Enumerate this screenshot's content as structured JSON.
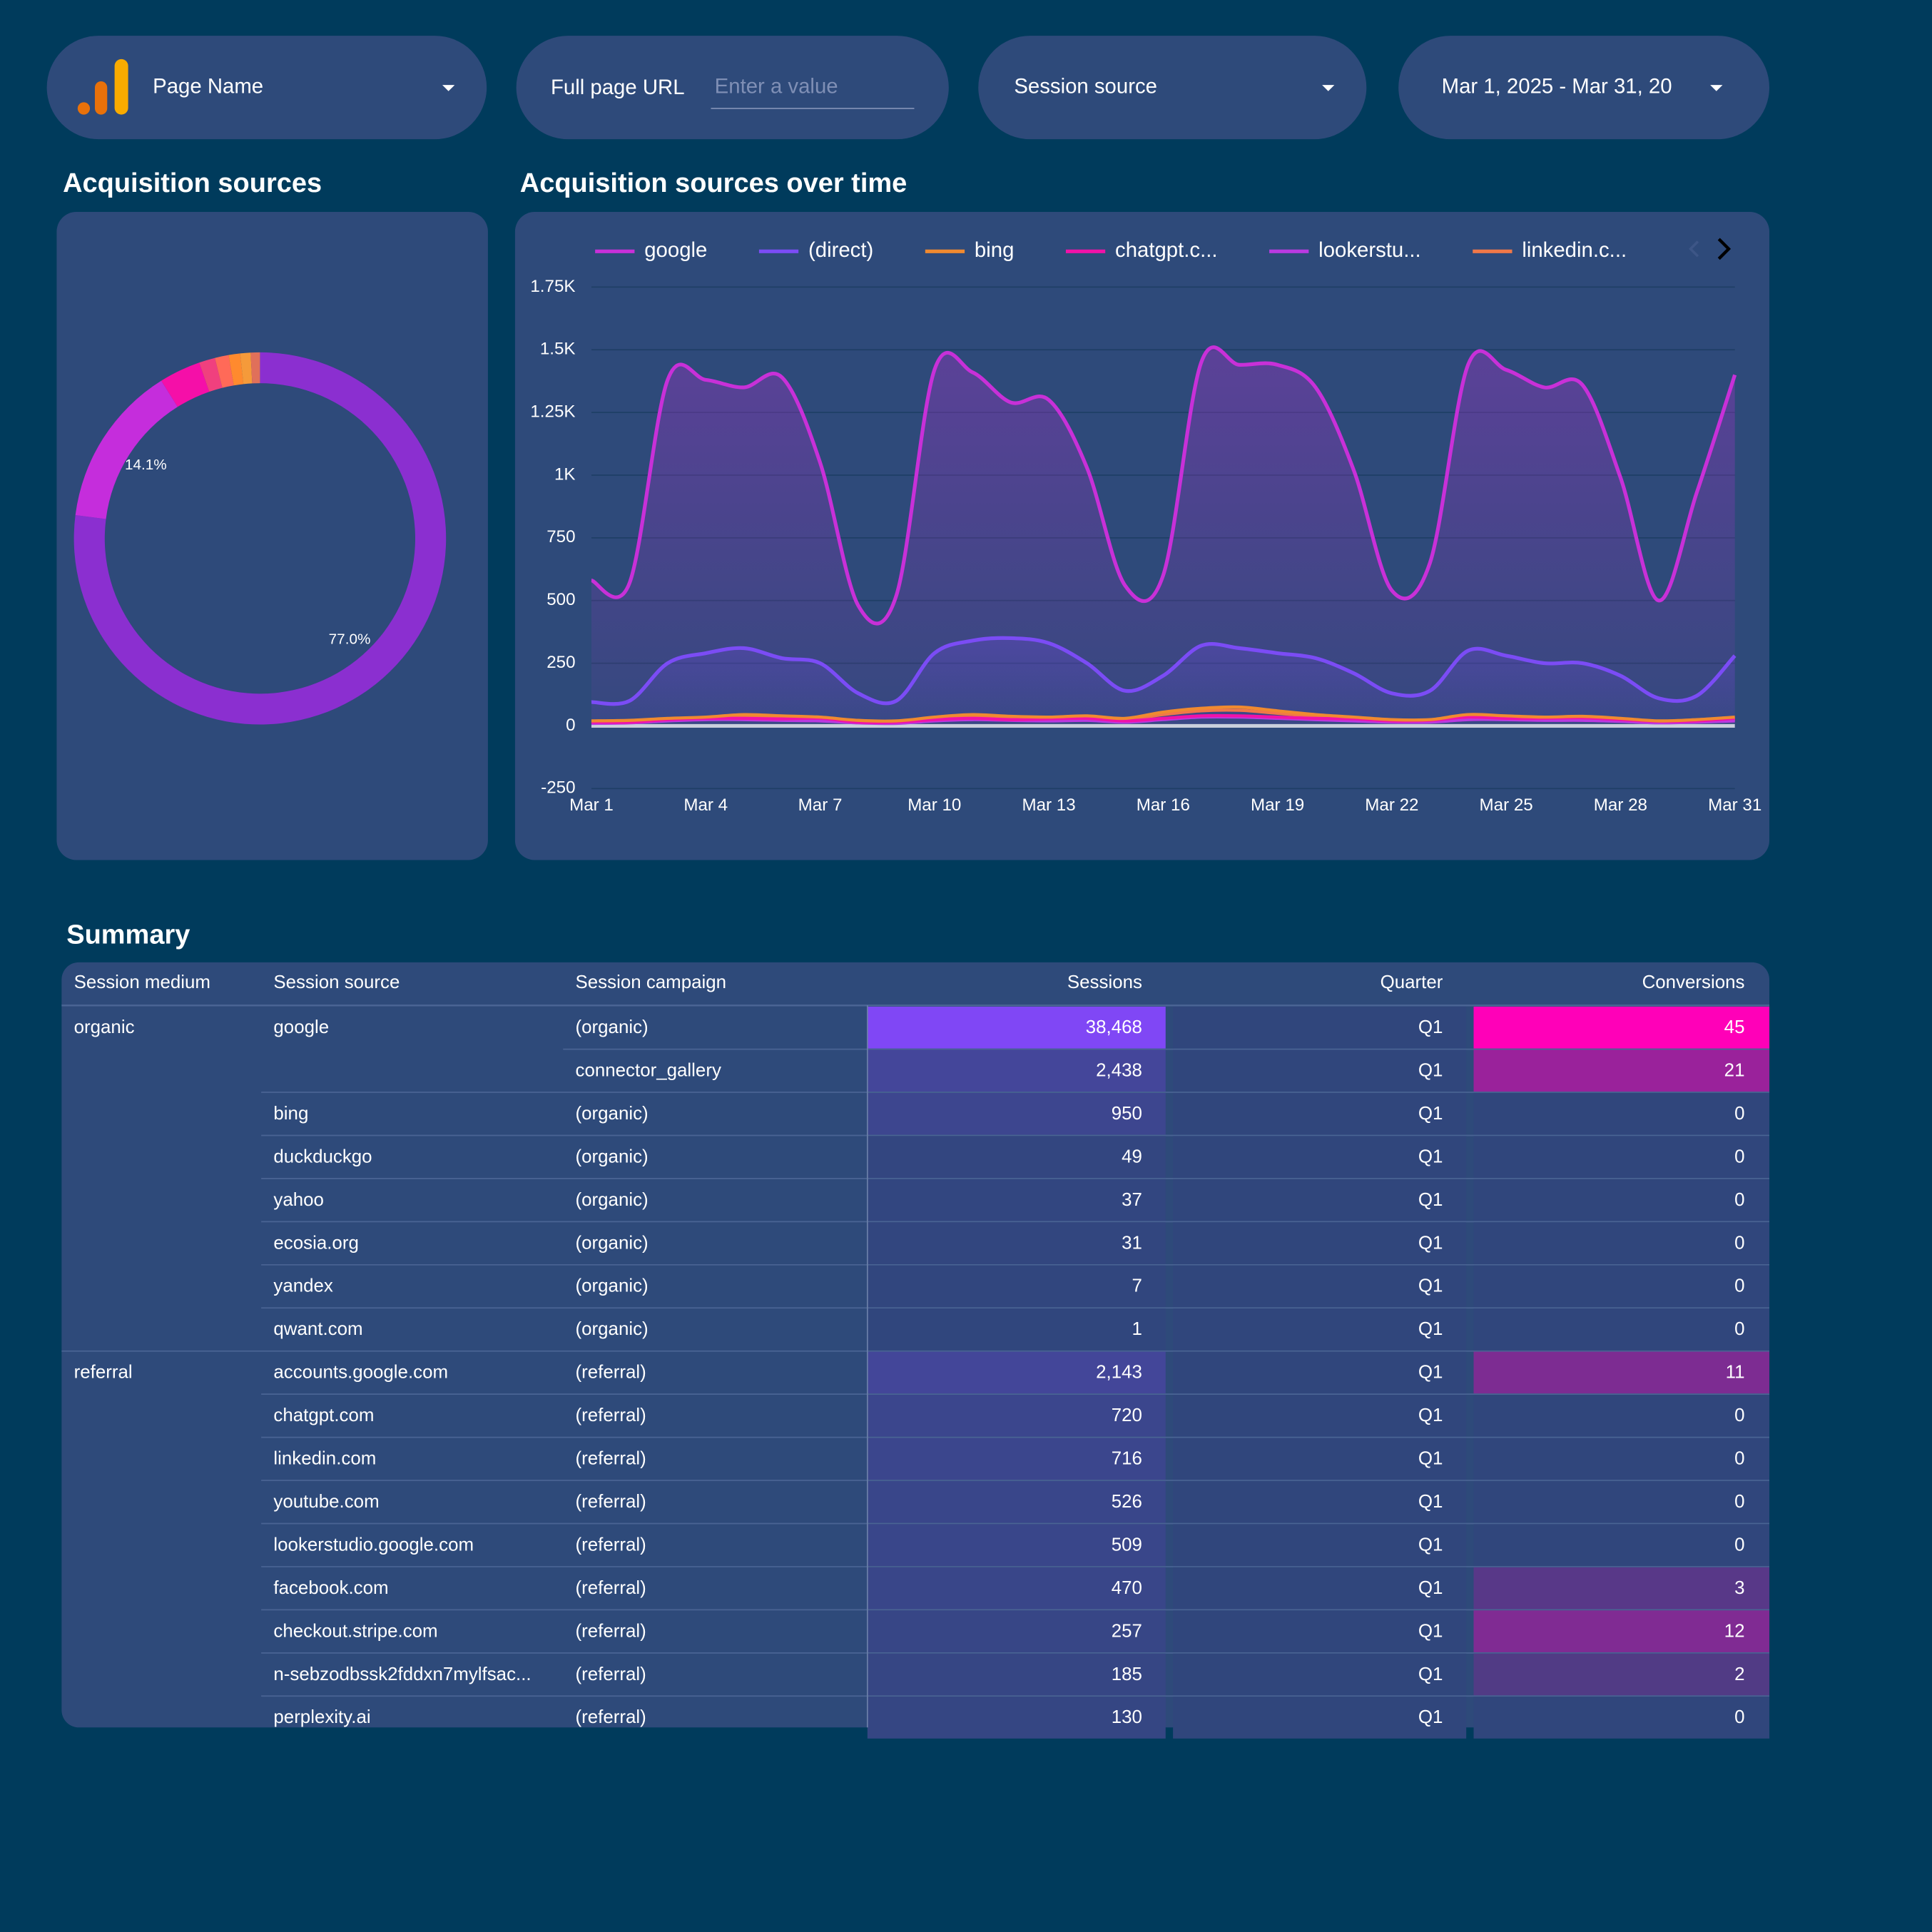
{
  "controls": {
    "page_name": "Page Name",
    "url_label": "Full page URL",
    "url_placeholder": "Enter a value",
    "session_source": "Session source",
    "date_range": "Mar 1, 2025 - Mar 31, 20"
  },
  "chart_data": [
    {
      "type": "pie",
      "donut": true,
      "title": "Acquisition sources",
      "values": [
        77.0,
        14.1,
        3.6,
        1.4,
        1.2,
        1.0,
        0.9,
        0.8
      ],
      "value_labels": [
        "77.0%",
        "14.1%",
        null,
        null,
        null,
        null,
        null,
        null
      ],
      "colors": [
        "#8b2fd0",
        "#c52ddc",
        "#f50fa8",
        "#f0407e",
        "#ff6a58",
        "#ff8a2e",
        "#f59a3a",
        "#e0705a"
      ]
    },
    {
      "type": "line",
      "title": "Acquisition sources over time",
      "legend": "top",
      "grid": true,
      "categories": [
        "Mar 1",
        null,
        null,
        "Mar 4",
        null,
        null,
        "Mar 7",
        null,
        null,
        "Mar 10",
        null,
        null,
        "Mar 13",
        null,
        null,
        "Mar 16",
        null,
        null,
        "Mar 19",
        null,
        null,
        "Mar 22",
        null,
        null,
        "Mar 25",
        null,
        null,
        "Mar 28",
        null,
        null,
        "Mar 31"
      ],
      "ylim": [
        -250,
        1750
      ],
      "yticks": [
        -250,
        0,
        250,
        500,
        750,
        {
          "value": 1000,
          "label": "1K"
        },
        {
          "value": 1250,
          "label": "1.25K"
        },
        {
          "value": 1500,
          "label": "1.5K"
        },
        {
          "value": 1750,
          "label": "1.75K"
        }
      ],
      "series": [
        {
          "name": "google",
          "color": "#c830d8",
          "values": [
            580,
            570,
            1380,
            1380,
            1350,
            1390,
            1050,
            480,
            520,
            1420,
            1410,
            1290,
            1300,
            1030,
            560,
            600,
            1450,
            1440,
            1440,
            1350,
            1020,
            540,
            650,
            1440,
            1420,
            1350,
            1360,
            990,
            500,
            930,
            1400
          ]
        },
        {
          "name": "(direct)",
          "color": "#7b4cf5",
          "values": [
            95,
            100,
            250,
            290,
            310,
            270,
            250,
            130,
            100,
            290,
            340,
            350,
            330,
            250,
            140,
            200,
            320,
            310,
            290,
            270,
            210,
            130,
            140,
            300,
            280,
            250,
            250,
            200,
            110,
            120,
            280
          ]
        },
        {
          "name": "bing",
          "color": "#f08a30",
          "values": [
            20,
            22,
            30,
            35,
            45,
            40,
            35,
            22,
            20,
            35,
            45,
            38,
            35,
            40,
            30,
            55,
            70,
            75,
            60,
            45,
            35,
            25,
            25,
            45,
            40,
            35,
            38,
            30,
            20,
            25,
            35
          ]
        },
        {
          "name": "chatgpt.c...",
          "color": "#f012a8",
          "values": [
            15,
            15,
            25,
            30,
            30,
            28,
            30,
            15,
            15,
            25,
            30,
            25,
            28,
            30,
            20,
            30,
            40,
            40,
            35,
            30,
            28,
            20,
            22,
            35,
            30,
            30,
            32,
            25,
            18,
            20,
            30
          ]
        },
        {
          "name": "lookerstu...",
          "color": "#b93ae0",
          "values": [
            10,
            12,
            20,
            25,
            25,
            22,
            20,
            12,
            10,
            20,
            25,
            22,
            20,
            22,
            15,
            25,
            35,
            35,
            30,
            25,
            20,
            15,
            15,
            25,
            25,
            22,
            22,
            18,
            12,
            15,
            20
          ]
        },
        {
          "name": "linkedin.c...",
          "color": "#f07848",
          "values": [
            15,
            18,
            25,
            30,
            35,
            30,
            28,
            15,
            15,
            28,
            35,
            30,
            30,
            32,
            25,
            45,
            60,
            62,
            50,
            38,
            30,
            20,
            20,
            35,
            32,
            28,
            30,
            22,
            15,
            18,
            25
          ]
        }
      ]
    }
  ],
  "summary": {
    "title": "Summary",
    "columns": [
      "Session medium",
      "Session source",
      "Session campaign",
      "Sessions",
      "Quarter",
      "Conversions"
    ],
    "rows": [
      [
        "organic",
        "google",
        "(organic)",
        "38,468",
        "Q1",
        "45"
      ],
      [
        null,
        null,
        "connector_gallery",
        "2,438",
        "Q1",
        "21"
      ],
      [
        null,
        "bing",
        "(organic)",
        "950",
        "Q1",
        "0"
      ],
      [
        null,
        "duckduckgo",
        "(organic)",
        "49",
        "Q1",
        "0"
      ],
      [
        null,
        "yahoo",
        "(organic)",
        "37",
        "Q1",
        "0"
      ],
      [
        null,
        "ecosia.org",
        "(organic)",
        "31",
        "Q1",
        "0"
      ],
      [
        null,
        "yandex",
        "(organic)",
        "7",
        "Q1",
        "0"
      ],
      [
        null,
        "qwant.com",
        "(organic)",
        "1",
        "Q1",
        "0"
      ],
      [
        "referral",
        "accounts.google.com",
        "(referral)",
        "2,143",
        "Q1",
        "11"
      ],
      [
        null,
        "chatgpt.com",
        "(referral)",
        "720",
        "Q1",
        "0"
      ],
      [
        null,
        "linkedin.com",
        "(referral)",
        "716",
        "Q1",
        "0"
      ],
      [
        null,
        "youtube.com",
        "(referral)",
        "526",
        "Q1",
        "0"
      ],
      [
        null,
        "lookerstudio.google.com",
        "(referral)",
        "509",
        "Q1",
        "0"
      ],
      [
        null,
        "facebook.com",
        "(referral)",
        "470",
        "Q1",
        "3"
      ],
      [
        null,
        "checkout.stripe.com",
        "(referral)",
        "257",
        "Q1",
        "12"
      ],
      [
        null,
        "n-sebzodbssk2fddxn7mylfsac...",
        "(referral)",
        "185",
        "Q1",
        "2"
      ],
      [
        null,
        "perplexity.ai",
        "(referral)",
        "130",
        "Q1",
        "0"
      ]
    ]
  }
}
